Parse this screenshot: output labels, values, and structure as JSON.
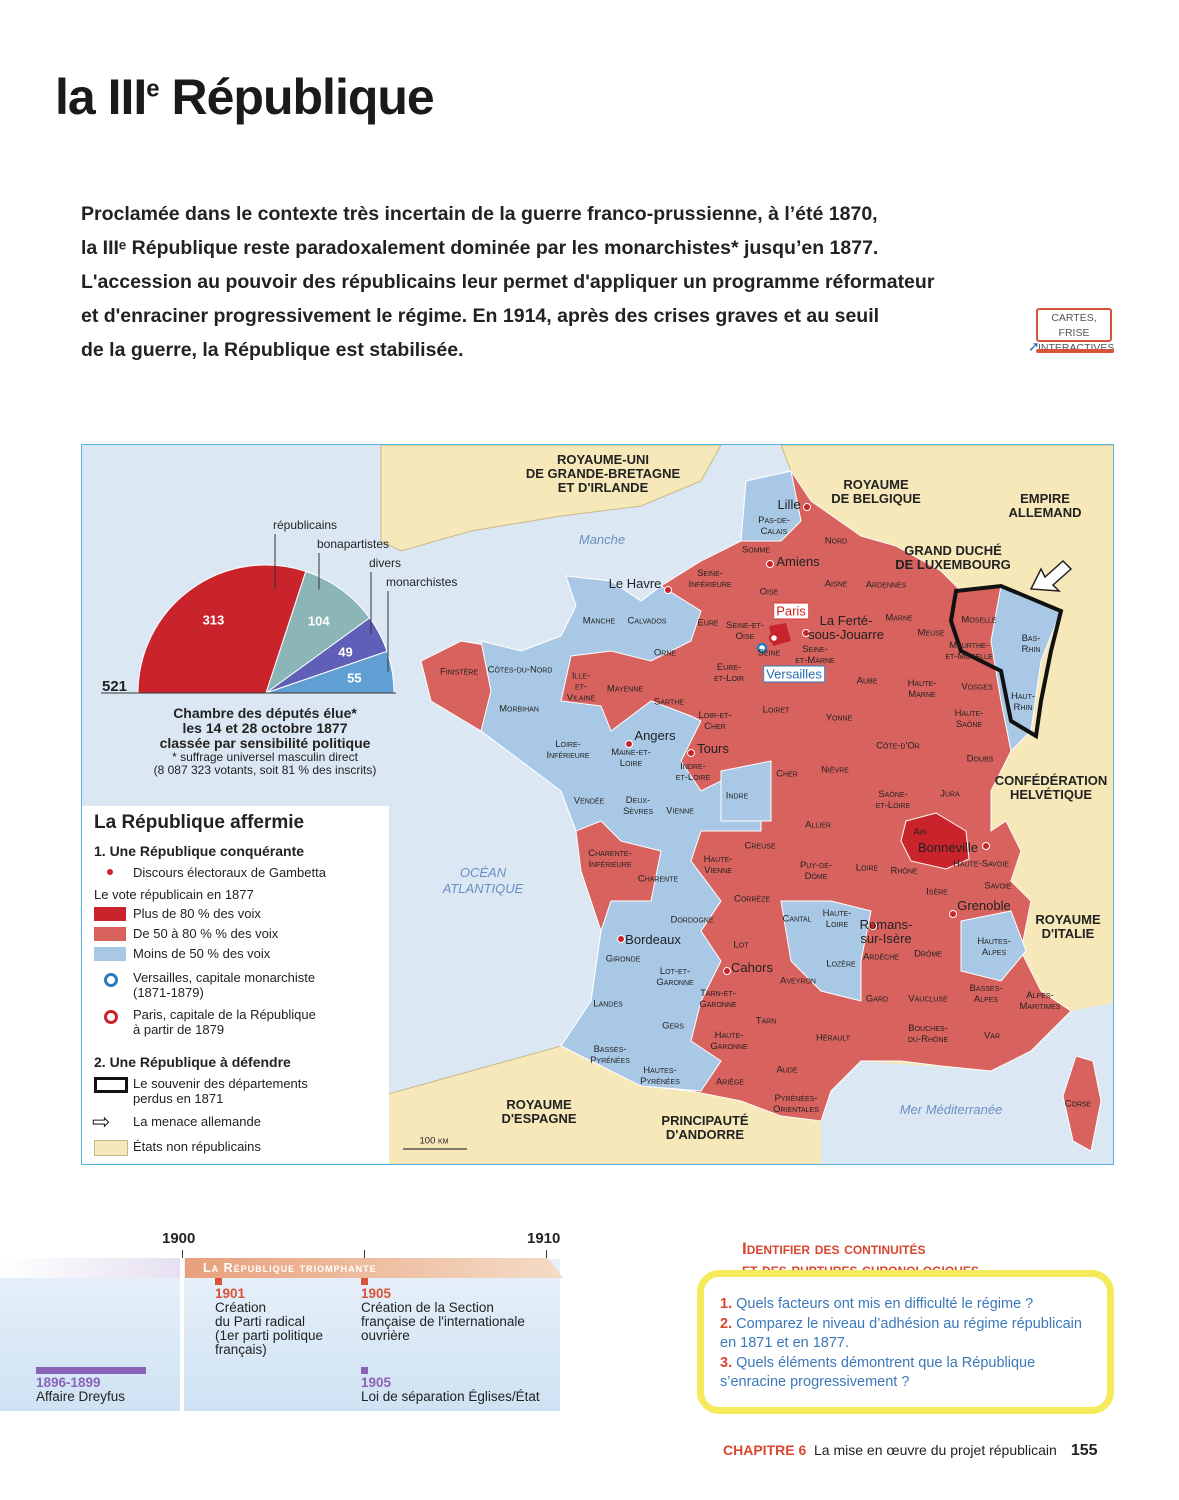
{
  "title": {
    "main": "la III",
    "sup": "e",
    "rest": " République"
  },
  "intro": [
    "Proclamée dans le contexte très incertain de la guerre franco-prussienne, à l’été 1870,",
    "la IIIᵉ République reste paradoxalement dominée par les monarchistes* jusqu’en 1877.",
    "L'accession au pouvoir des républicains leur permet d'appliquer un programme réformateur",
    "et d'enraciner progressivement le régime. En 1914, après des crises graves et au seuil",
    "de la guerre, la République est stabilisée."
  ],
  "cartes_button": {
    "line1": "CARTES, FRISE",
    "line2": "INTERACTIVES"
  },
  "colors": {
    "plus80": "#c9242b",
    "de50a80": "#d8625e",
    "moins50": "#a9c8e6",
    "non_republicains": "#f6e8b8",
    "sea": "#dbe8f4",
    "accent": "#d9462e"
  },
  "hemicycle": {
    "total": "521",
    "series": [
      {
        "name": "républicains",
        "value": 313,
        "color": "#c9242b"
      },
      {
        "name": "bonapartistes",
        "value": 104,
        "color": "#8cb5b8"
      },
      {
        "name": "divers",
        "value": 49,
        "color": "#5f5fb8"
      },
      {
        "name": "monarchistes",
        "value": 55,
        "color": "#5f9fd4"
      }
    ],
    "caption": [
      "Chambre des députés élue*",
      "les 14 et 28 octobre 1877",
      "classée par sensibilité politique"
    ],
    "note": [
      "* suffrage universel masculin direct",
      "(8 087 323 votants, soit 81 % des inscrits)"
    ]
  },
  "map_labels": [
    "ROYAUME-UNI\nDE GRANDE-BRETAGNE\nET D'IRLANDE",
    "ROYAUME\nDE BELGIQUE",
    "EMPIRE\nALLEMAND",
    "GRAND DUCHÉ\nDE LUXEMBOURG",
    "CONFÉDÉRATION\nHELVÉTIQUE",
    "ROYAUME\nD'ITALIE",
    "ROYAUME\nD'ESPAGNE",
    "PRINCIPAUTÉ\nD'ANDORRE",
    "Manche",
    "OCÉAN\nATLANTIQUE",
    "Mer Méditerranée",
    "Lille",
    "Amiens",
    "Le Havre",
    "La Ferté-\nsous-Jouarre",
    "Angers",
    "Tours",
    "Bonneville",
    "Grenoble",
    "Romans-\nsur-Isère",
    "Bordeaux",
    "Cahors",
    "Paris",
    "Versailles",
    "Pas-de-\nCalais",
    "Nord",
    "Somme",
    "Seine-\nInférieure",
    "Oise",
    "Aisne",
    "Ardennes",
    "Manche",
    "Calvados",
    "Eure",
    "Seine-et-\nOise",
    "Marne",
    "Meuse",
    "Moselle",
    "Bas-\nRhin",
    "Meurthe-\net-Moselle",
    "Seine",
    "Seine-\net-Marne",
    "Finistère",
    "Côtes-du-Nord",
    "Ille-\net-\nVilaine",
    "Mayenne",
    "Orne",
    "Eure-\net-Loir",
    "Aube",
    "Haute-\nMarne",
    "Vosges",
    "Haut-\nRhin",
    "Morbihan",
    "Sarthe",
    "Loiret",
    "Yonne",
    "Haute-\nSaône",
    "Loir-et-\nCher",
    "Loire-\nInférieure",
    "Maine-et-\nLoire",
    "Indre-\net-Loire",
    "Côte-d'Or",
    "Doubs",
    "Cher",
    "Nièvre",
    "Vendée",
    "Deux-\nSèvres",
    "Vienne",
    "Indre",
    "Saône-\net-Loire",
    "Jura",
    "Allier",
    "Ain",
    "Haute-Savoie",
    "Charente-\nInférieure",
    "Haute-\nVienne",
    "Creuse",
    "Puy-de-\nDôme",
    "Loire",
    "Rhône",
    "Charente",
    "Savoie",
    "Isère",
    "Corrèze",
    "Dordogne",
    "Cantal",
    "Haute-\nLoire",
    "Hautes-\nAlpes",
    "Lot",
    "Gironde",
    "Ardèche",
    "Drôme",
    "Lozère",
    "Lot-et-\nGaronne",
    "Aveyron",
    "Basses-\nAlpes",
    "Alpes-\nMaritimes",
    "Tarn-et-\nGaronne",
    "Landes",
    "Gard",
    "Vaucluse",
    "Gers",
    "Tarn",
    "Hérault",
    "Bouches-\ndu-Rhône",
    "Var",
    "Haute-\nGaronne",
    "Basses-\nPyrénées",
    "Hautes-\nPyrénées",
    "Ariège",
    "Aude",
    "Pyrénées-\nOrientales",
    "Corse",
    "100 km"
  ],
  "legend": {
    "title": "La République affermie",
    "s1": "1. Une République conquérante",
    "gambetta": "Discours électoraux de Gambetta",
    "vote_title": "Le vote républicain en 1877",
    "plus80": "Plus de 80 % des voix",
    "de50": "De 50 à 80 % % des voix",
    "moins50": "Moins de 50 % des voix",
    "versailles": [
      "Versailles, capitale monarchiste",
      "(1871-1879)"
    ],
    "paris": [
      "Paris, capitale de la République",
      "à partir de 1879"
    ],
    "s2": "2. Une République à défendre",
    "souvenir": [
      "Le souvenir des départements",
      "perdus en 1871"
    ],
    "menace": "La menace allemande",
    "etats": "États non républicains"
  },
  "timeline": {
    "y1900": "1900",
    "y1910": "1910",
    "period": "La République triomphante",
    "events": [
      {
        "year": "1901",
        "text": [
          "Création",
          "du Parti radical",
          "(1er parti politique",
          "français)"
        ]
      },
      {
        "year": "1905",
        "text": [
          "Création de la Section",
          "française de l'internationale",
          "ouvrière"
        ]
      },
      {
        "year": "1905",
        "text": [
          "Loi de séparation Églises/État"
        ]
      },
      {
        "year": "1896-1899",
        "text": [
          "Affaire Dreyfus"
        ]
      }
    ]
  },
  "questions": {
    "title": [
      "Identifier des continuités",
      "et des ruptures chronologiques"
    ],
    "items": [
      {
        "n": "1.",
        "text": "Quels facteurs ont mis en difficulté le régime ?"
      },
      {
        "n": "2.",
        "text": "Comparez le niveau d’adhésion au régime républicain en 1871 et en 1877."
      },
      {
        "n": "3.",
        "text": "Quels éléments démontrent que la République s’enracine progressivement ?"
      }
    ]
  },
  "footer": {
    "chapter": "CHAPITRE 6",
    "title": "La mise en œuvre du projet républicain",
    "page": "155"
  }
}
